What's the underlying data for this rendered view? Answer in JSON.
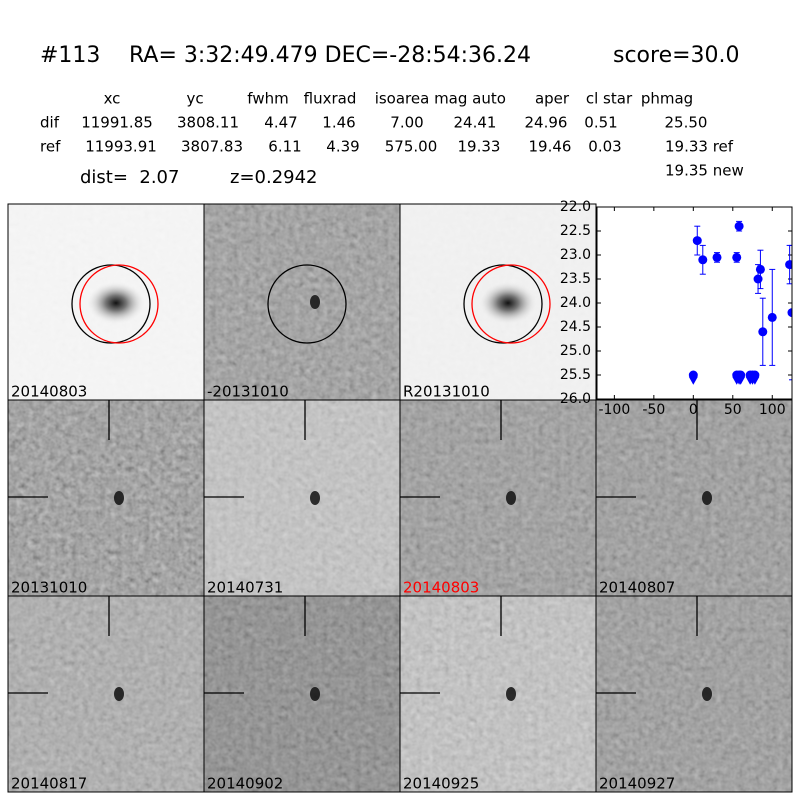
{
  "header": {
    "id": "#113",
    "coords": "RA= 3:32:49.479 DEC=-28:54:36.24",
    "score": "score=30.0"
  },
  "table": {
    "columns": [
      "xc",
      "yc",
      "fwhm",
      "fluxrad",
      "isoarea",
      "mag auto",
      "aper",
      "cl star",
      "phmag"
    ],
    "rows": [
      {
        "label": "dif",
        "cells": [
          "11991.85",
          "3808.11",
          "4.47",
          "1.46",
          "7.00",
          "24.41",
          "24.96",
          "0.51",
          "25.50"
        ]
      },
      {
        "label": "ref",
        "cells": [
          "11993.91",
          "3807.83",
          "6.11",
          "4.39",
          "575.00",
          "19.33",
          "19.46",
          "0.03",
          "19.33 ref"
        ]
      }
    ],
    "extra": "19.35 new"
  },
  "info": {
    "dist": "dist=  2.07",
    "z": "z=0.2942"
  },
  "panels": [
    {
      "label": "20140803"
    },
    {
      "label": "-20131010"
    },
    {
      "label": "R20131010"
    },
    {
      "label": "20131010"
    },
    {
      "label": "20140731"
    },
    {
      "label": "20140803",
      "color": "#ff0000"
    },
    {
      "label": "20140807"
    },
    {
      "label": "20140817"
    },
    {
      "label": "20140902"
    },
    {
      "label": "20140925"
    },
    {
      "label": "20140927"
    }
  ],
  "chart_data": {
    "type": "scatter",
    "xlim": [
      -122,
      125
    ],
    "xticks": [
      -100,
      -50,
      0,
      50,
      100
    ],
    "ylim": [
      22,
      26
    ],
    "invert_y": true,
    "yticks": [
      {
        "value": 22,
        "label": "22.0"
      },
      {
        "value": 22.5,
        "label": "22.5"
      },
      {
        "value": 23,
        "label": "23.0"
      },
      {
        "value": 23.5,
        "label": "23.5"
      },
      {
        "value": 24,
        "label": "24.0"
      },
      {
        "value": 24.5,
        "label": "24.5"
      },
      {
        "value": 25,
        "label": "25.0"
      },
      {
        "value": 25.5,
        "label": "25.5"
      },
      {
        "value": 26,
        "label": "26.0"
      }
    ],
    "series": [
      {
        "color": "#0000ff",
        "marker": "circle",
        "x": [
          0,
          5,
          12,
          30,
          55,
          58,
          55,
          58,
          60,
          72,
          75,
          78,
          82,
          85,
          88,
          100,
          122,
          125
        ],
        "values": [
          25.5,
          22.7,
          23.1,
          23.05,
          23.05,
          22.4,
          25.5,
          25.5,
          25.5,
          25.5,
          25.5,
          25.5,
          23.5,
          23.3,
          24.6,
          24.3,
          23.2,
          24.2
        ],
        "errors": [
          null,
          0.3,
          0.3,
          0.1,
          0.1,
          0.1,
          null,
          null,
          null,
          null,
          null,
          null,
          0.3,
          0.4,
          0.7,
          1.0,
          0.4,
          1.4
        ]
      },
      {
        "color": "#0000ff",
        "marker": "triangle-down",
        "x": [
          0,
          55,
          58,
          60,
          72,
          75,
          78
        ],
        "values": [
          25.62,
          25.62,
          25.62,
          25.62,
          25.62,
          25.62,
          25.62
        ],
        "errors": [
          null,
          null,
          null,
          null,
          null,
          null,
          null
        ]
      }
    ]
  }
}
